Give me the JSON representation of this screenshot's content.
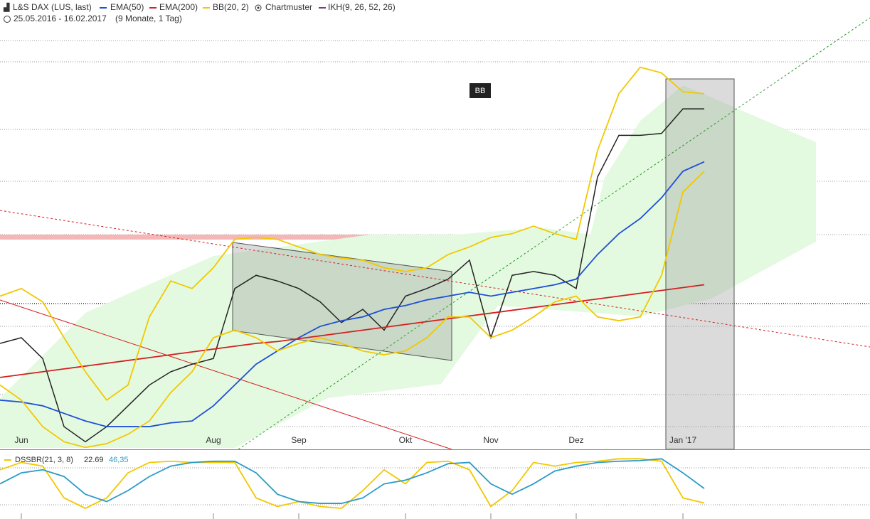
{
  "header": {
    "instrument": "L&S DAX (LUS, last)",
    "indicators": [
      "EMA(50)",
      "EMA(200)",
      "BB(20, 2)",
      "Chartmuster",
      "IKH(9, 26, 52, 26)"
    ],
    "period": "25.05.2016 - 16.02.2017",
    "span": "(9 Monate, 1 Tag)",
    "marker": "BB"
  },
  "chart_data": [
    {
      "type": "line",
      "categories": [
        null,
        "Jun",
        null,
        null,
        null,
        null,
        null,
        null,
        null,
        null,
        "Aug",
        null,
        null,
        null,
        "Sep",
        null,
        null,
        null,
        null,
        "Okt",
        null,
        null,
        null,
        "Nov",
        null,
        null,
        null,
        "Dez",
        null,
        null,
        null,
        null,
        "Jan '17",
        null
      ],
      "ylim": [
        9780,
        12020
      ],
      "series": [
        {
          "name": "L&S DAX (LUS, last)",
          "color": "#222222",
          "values": [
            10340,
            10370,
            10260,
            9900,
            9820,
            9900,
            10010,
            10120,
            10190,
            10230,
            10260,
            10630,
            10700,
            10670,
            10630,
            10560,
            10450,
            10520,
            10410,
            10590,
            10630,
            10680,
            10780,
            10370,
            10700,
            10720,
            10700,
            10630,
            11220,
            11440,
            11440,
            11450,
            11580,
            11580
          ]
        },
        {
          "name": "EMA(50)",
          "color": "#1f4fd8",
          "values": [
            10040,
            10030,
            10010,
            9970,
            9930,
            9900,
            9900,
            9900,
            9920,
            9930,
            10010,
            10120,
            10230,
            10300,
            10370,
            10430,
            10460,
            10480,
            10520,
            10540,
            10570,
            10590,
            10610,
            10590,
            10610,
            10630,
            10650,
            10680,
            10810,
            10920,
            11000,
            11110,
            11250,
            11300
          ]
        },
        {
          "name": "EMA(200)",
          "color": "#d42020",
          "values": [
            10160,
            10175,
            10190,
            10205,
            10220,
            10235,
            10250,
            10265,
            10280,
            10295,
            10310,
            10325,
            10340,
            10350,
            10365,
            10380,
            10395,
            10410,
            10425,
            10440,
            10455,
            10470,
            10485,
            10500,
            10515,
            10530,
            10545,
            10560,
            10575,
            10590,
            10605,
            10620,
            10635,
            10650
          ]
        },
        {
          "name": "BB(20, 2)",
          "color": "#f2c800",
          "values": [
            10590,
            10630,
            10560,
            10370,
            10190,
            10040,
            10120,
            10480,
            10670,
            10630,
            10740,
            10890,
            10900,
            10890,
            10850,
            10810,
            10790,
            10780,
            10740,
            10720,
            10740,
            10810,
            10850,
            10900,
            10920,
            10960,
            10920,
            10890,
            11360,
            11660,
            11800,
            11770,
            11670,
            11660
          ],
          "lower": [
            10120,
            10040,
            9900,
            9820,
            9790,
            9810,
            9860,
            9930,
            10080,
            10190,
            10370,
            10410,
            10370,
            10300,
            10340,
            10370,
            10340,
            10300,
            10280,
            10300,
            10370,
            10480,
            10480,
            10370,
            10410,
            10480,
            10560,
            10590,
            10480,
            10460,
            10480,
            10700,
            11140,
            11250
          ]
        }
      ]
    },
    {
      "type": "line",
      "ylim": [
        0,
        100
      ],
      "series": [
        {
          "name": "DSSBR(21, 3, 8)",
          "color": "#f2c800",
          "last_label": "22.69",
          "values": [
            77,
            89,
            83,
            31,
            14,
            31,
            72,
            89,
            91,
            89,
            89,
            89,
            31,
            17,
            25,
            17,
            14,
            43,
            77,
            54,
            89,
            91,
            77,
            17,
            43,
            89,
            83,
            89,
            91,
            95,
            95,
            91,
            31,
            22.69
          ]
        },
        {
          "color": "#2a9bc7",
          "last_label": "46,35",
          "values": [
            54,
            72,
            77,
            66,
            37,
            25,
            43,
            66,
            83,
            89,
            91,
            91,
            72,
            37,
            25,
            22,
            22,
            31,
            54,
            60,
            72,
            87,
            89,
            54,
            37,
            54,
            75,
            83,
            89,
            91,
            92,
            95,
            72,
            46.35
          ]
        }
      ]
    }
  ]
}
